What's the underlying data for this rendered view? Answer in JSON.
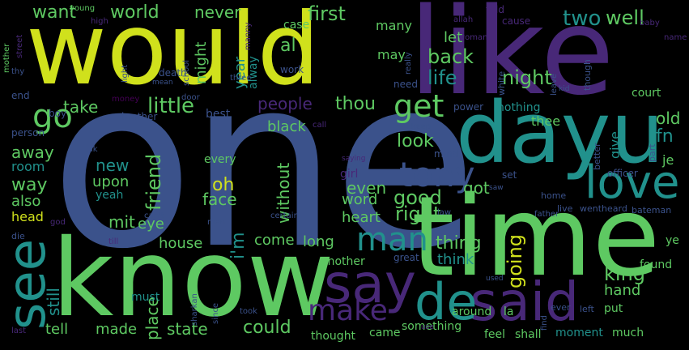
{
  "palette": {
    "yellow": "#d0e11c",
    "blue": "#3b528b",
    "teal": "#21918c",
    "green": "#5ec962",
    "purple": "#482878",
    "dark": "#440154",
    "lime": "#addc30"
  },
  "words": [
    {
      "text": "would",
      "color": "yellow"
    },
    {
      "text": "like",
      "color": "purple"
    },
    {
      "text": "one",
      "color": "blue"
    },
    {
      "text": "time",
      "color": "green"
    },
    {
      "text": "know",
      "color": "green"
    },
    {
      "text": "dayu",
      "color": "teal"
    },
    {
      "text": "said",
      "color": "purple"
    },
    {
      "text": "say",
      "color": "purple"
    },
    {
      "text": "de",
      "color": "teal"
    },
    {
      "text": "see",
      "color": "teal"
    },
    {
      "text": "love",
      "color": "teal"
    },
    {
      "text": "tony",
      "color": "blue"
    },
    {
      "text": "man",
      "color": "teal"
    },
    {
      "text": "make",
      "color": "purple"
    },
    {
      "text": "get",
      "color": "green"
    },
    {
      "text": "go",
      "color": "green"
    },
    {
      "text": "want",
      "color": "green"
    },
    {
      "text": "world",
      "color": "green"
    },
    {
      "text": "never",
      "color": "green"
    },
    {
      "text": "first",
      "color": "green"
    },
    {
      "text": "two",
      "color": "teal"
    },
    {
      "text": "well",
      "color": "green"
    },
    {
      "text": "back",
      "color": "green"
    },
    {
      "text": "life",
      "color": "teal"
    },
    {
      "text": "night",
      "color": "green"
    },
    {
      "text": "people",
      "color": "purple"
    },
    {
      "text": "thou",
      "color": "green"
    },
    {
      "text": "little",
      "color": "green"
    },
    {
      "text": "take",
      "color": "green"
    },
    {
      "text": "look",
      "color": "green"
    },
    {
      "text": "good",
      "color": "green"
    },
    {
      "text": "right",
      "color": "green"
    },
    {
      "text": "new",
      "color": "teal"
    },
    {
      "text": "upon",
      "color": "green"
    },
    {
      "text": "friend",
      "color": "green"
    },
    {
      "text": "face",
      "color": "green"
    },
    {
      "text": "house",
      "color": "green"
    },
    {
      "text": "eye",
      "color": "green"
    },
    {
      "text": "come",
      "color": "green"
    },
    {
      "text": "long",
      "color": "green"
    },
    {
      "text": "thing",
      "color": "green"
    },
    {
      "text": "think",
      "color": "teal"
    },
    {
      "text": "going",
      "color": "yellow"
    },
    {
      "text": "king",
      "color": "green"
    },
    {
      "text": "hand",
      "color": "green"
    },
    {
      "text": "could",
      "color": "green"
    },
    {
      "text": "state",
      "color": "green"
    },
    {
      "text": "made",
      "color": "green"
    },
    {
      "text": "tell",
      "color": "green"
    },
    {
      "text": "still",
      "color": "teal"
    },
    {
      "text": "place",
      "color": "green"
    },
    {
      "text": "oh",
      "color": "yellow"
    },
    {
      "text": "got",
      "color": "green"
    },
    {
      "text": "even",
      "color": "green"
    },
    {
      "text": "word",
      "color": "green"
    },
    {
      "text": "heart",
      "color": "green"
    },
    {
      "text": "way",
      "color": "green"
    },
    {
      "text": "also",
      "color": "green"
    },
    {
      "text": "away",
      "color": "green"
    },
    {
      "text": "yeah",
      "color": "teal"
    },
    {
      "text": "head",
      "color": "yellow"
    },
    {
      "text": "room",
      "color": "teal"
    },
    {
      "text": "every",
      "color": "green"
    },
    {
      "text": "without",
      "color": "green"
    },
    {
      "text": "i'm",
      "color": "teal"
    },
    {
      "text": "mit",
      "color": "green"
    },
    {
      "text": "black",
      "color": "green"
    },
    {
      "text": "old",
      "color": "green"
    },
    {
      "text": "give",
      "color": "teal"
    },
    {
      "text": "fn",
      "color": "teal"
    },
    {
      "text": "thee",
      "color": "green"
    },
    {
      "text": "nothing",
      "color": "teal"
    },
    {
      "text": "girl",
      "color": "purple"
    },
    {
      "text": "may",
      "color": "green"
    },
    {
      "text": "let",
      "color": "green"
    },
    {
      "text": "many",
      "color": "green"
    },
    {
      "text": "case",
      "color": "green"
    },
    {
      "text": "al",
      "color": "green"
    },
    {
      "text": "year",
      "color": "teal"
    },
    {
      "text": "might",
      "color": "green"
    },
    {
      "text": "alway",
      "color": "teal"
    },
    {
      "text": "another",
      "color": "green"
    },
    {
      "text": "must",
      "color": "teal"
    },
    {
      "text": "came",
      "color": "green"
    },
    {
      "text": "thought",
      "color": "green"
    },
    {
      "text": "something",
      "color": "green"
    },
    {
      "text": "feel",
      "color": "green"
    },
    {
      "text": "shall",
      "color": "green"
    },
    {
      "text": "moment",
      "color": "teal"
    },
    {
      "text": "much",
      "color": "green"
    },
    {
      "text": "around",
      "color": "green"
    },
    {
      "text": "la",
      "color": "green"
    },
    {
      "text": "young",
      "color": "green"
    },
    {
      "text": "high",
      "color": "purple"
    },
    {
      "text": "mother",
      "color": "green"
    },
    {
      "text": "allah",
      "color": "purple"
    },
    {
      "text": "told",
      "color": "purple"
    },
    {
      "text": "woman",
      "color": "purple"
    },
    {
      "text": "cause",
      "color": "purple"
    },
    {
      "text": "work",
      "color": "blue"
    },
    {
      "text": "death",
      "color": "blue"
    },
    {
      "text": "three",
      "color": "blue"
    },
    {
      "text": "money",
      "color": "dark"
    },
    {
      "text": "brother",
      "color": "blue"
    },
    {
      "text": "person",
      "color": "blue"
    },
    {
      "text": "boy",
      "color": "blue"
    },
    {
      "text": "best",
      "color": "blue"
    },
    {
      "text": "door",
      "color": "blue"
    },
    {
      "text": "end",
      "color": "blue"
    },
    {
      "text": "thy",
      "color": "blue"
    },
    {
      "text": "light",
      "color": "blue"
    },
    {
      "text": "school",
      "color": "blue"
    },
    {
      "text": "mean",
      "color": "blue"
    },
    {
      "text": "need",
      "color": "blue"
    },
    {
      "text": "really",
      "color": "blue"
    },
    {
      "text": "power",
      "color": "blue"
    },
    {
      "text": "white",
      "color": "blue"
    },
    {
      "text": "though",
      "color": "blue"
    },
    {
      "text": "court",
      "color": "green"
    },
    {
      "text": "leave",
      "color": "blue"
    },
    {
      "text": "kid",
      "color": "blue"
    },
    {
      "text": "keep",
      "color": "blue"
    },
    {
      "text": "mind",
      "color": "blue"
    },
    {
      "text": "set",
      "color": "blue"
    },
    {
      "text": "better",
      "color": "blue"
    },
    {
      "text": "officer",
      "color": "blue"
    },
    {
      "text": "part",
      "color": "blue"
    },
    {
      "text": "je",
      "color": "green"
    },
    {
      "text": "home",
      "color": "blue"
    },
    {
      "text": "live",
      "color": "blue"
    },
    {
      "text": "wentheard",
      "color": "blue"
    },
    {
      "text": "bateman",
      "color": "blue"
    },
    {
      "text": "ye",
      "color": "green"
    },
    {
      "text": "father",
      "color": "blue"
    },
    {
      "text": "law",
      "color": "blue"
    },
    {
      "text": "found",
      "color": "green"
    },
    {
      "text": "put",
      "color": "green"
    },
    {
      "text": "ever",
      "color": "blue"
    },
    {
      "text": "left",
      "color": "blue"
    },
    {
      "text": "find",
      "color": "blue"
    },
    {
      "text": "great",
      "color": "blue"
    },
    {
      "text": "used",
      "color": "blue"
    },
    {
      "text": "since",
      "color": "blue"
    },
    {
      "text": "took",
      "color": "blue"
    },
    {
      "text": "sharkan",
      "color": "blue"
    },
    {
      "text": "men",
      "color": "blue"
    },
    {
      "text": "can't",
      "color": "blue"
    },
    {
      "text": "certain",
      "color": "blue"
    },
    {
      "text": "die",
      "color": "blue"
    },
    {
      "text": "god",
      "color": "purple"
    },
    {
      "text": "ik",
      "color": "blue"
    },
    {
      "text": "saying",
      "color": "purple"
    },
    {
      "text": "saw",
      "color": "blue"
    },
    {
      "text": "baby",
      "color": "purple"
    },
    {
      "text": "name",
      "color": "purple"
    },
    {
      "text": "street",
      "color": "purple"
    },
    {
      "text": "manny",
      "color": "purple"
    },
    {
      "text": "call",
      "color": "purple"
    },
    {
      "text": "last",
      "color": "purple"
    },
    {
      "text": "use",
      "color": "purple"
    },
    {
      "text": "till",
      "color": "purple"
    }
  ]
}
